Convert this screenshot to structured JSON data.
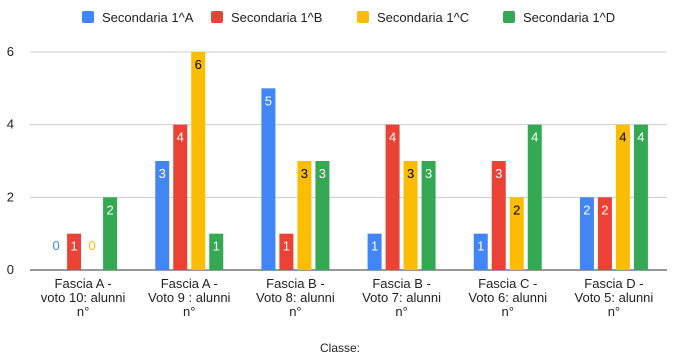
{
  "chart_data": {
    "type": "bar",
    "title": "",
    "xlabel": "Classe:",
    "ylabel": "",
    "ylim": [
      0,
      6
    ],
    "yticks": [
      0,
      2,
      4,
      6
    ],
    "grid": true,
    "legend_position": "top",
    "categories": [
      [
        "Fascia A -",
        "voto 10: alunni",
        "n°"
      ],
      [
        "Fascia A -",
        "Voto 9 : alunni",
        "n°"
      ],
      [
        "Fascia B -",
        "Voto 8: alunni",
        "n°"
      ],
      [
        "Fascia B -",
        "Voto 7: alunni",
        "n°"
      ],
      [
        "Fascia C -",
        "Voto 6: alunni",
        "n°"
      ],
      [
        "Fascia D -",
        "Voto 5: alunni",
        "n°"
      ]
    ],
    "series": [
      {
        "name": "Secondaria 1^A",
        "color": "#4285f4",
        "values": [
          0,
          3,
          5,
          1,
          1,
          2
        ]
      },
      {
        "name": "Secondaria 1^B",
        "color": "#ea4335",
        "values": [
          1,
          4,
          1,
          4,
          3,
          2
        ]
      },
      {
        "name": "Secondaria 1^C",
        "color": "#fbbc04",
        "values": [
          0,
          6,
          3,
          3,
          2,
          4
        ]
      },
      {
        "name": "Secondaria 1^D",
        "color": "#34a853",
        "values": [
          2,
          1,
          3,
          3,
          4,
          4
        ]
      }
    ]
  }
}
